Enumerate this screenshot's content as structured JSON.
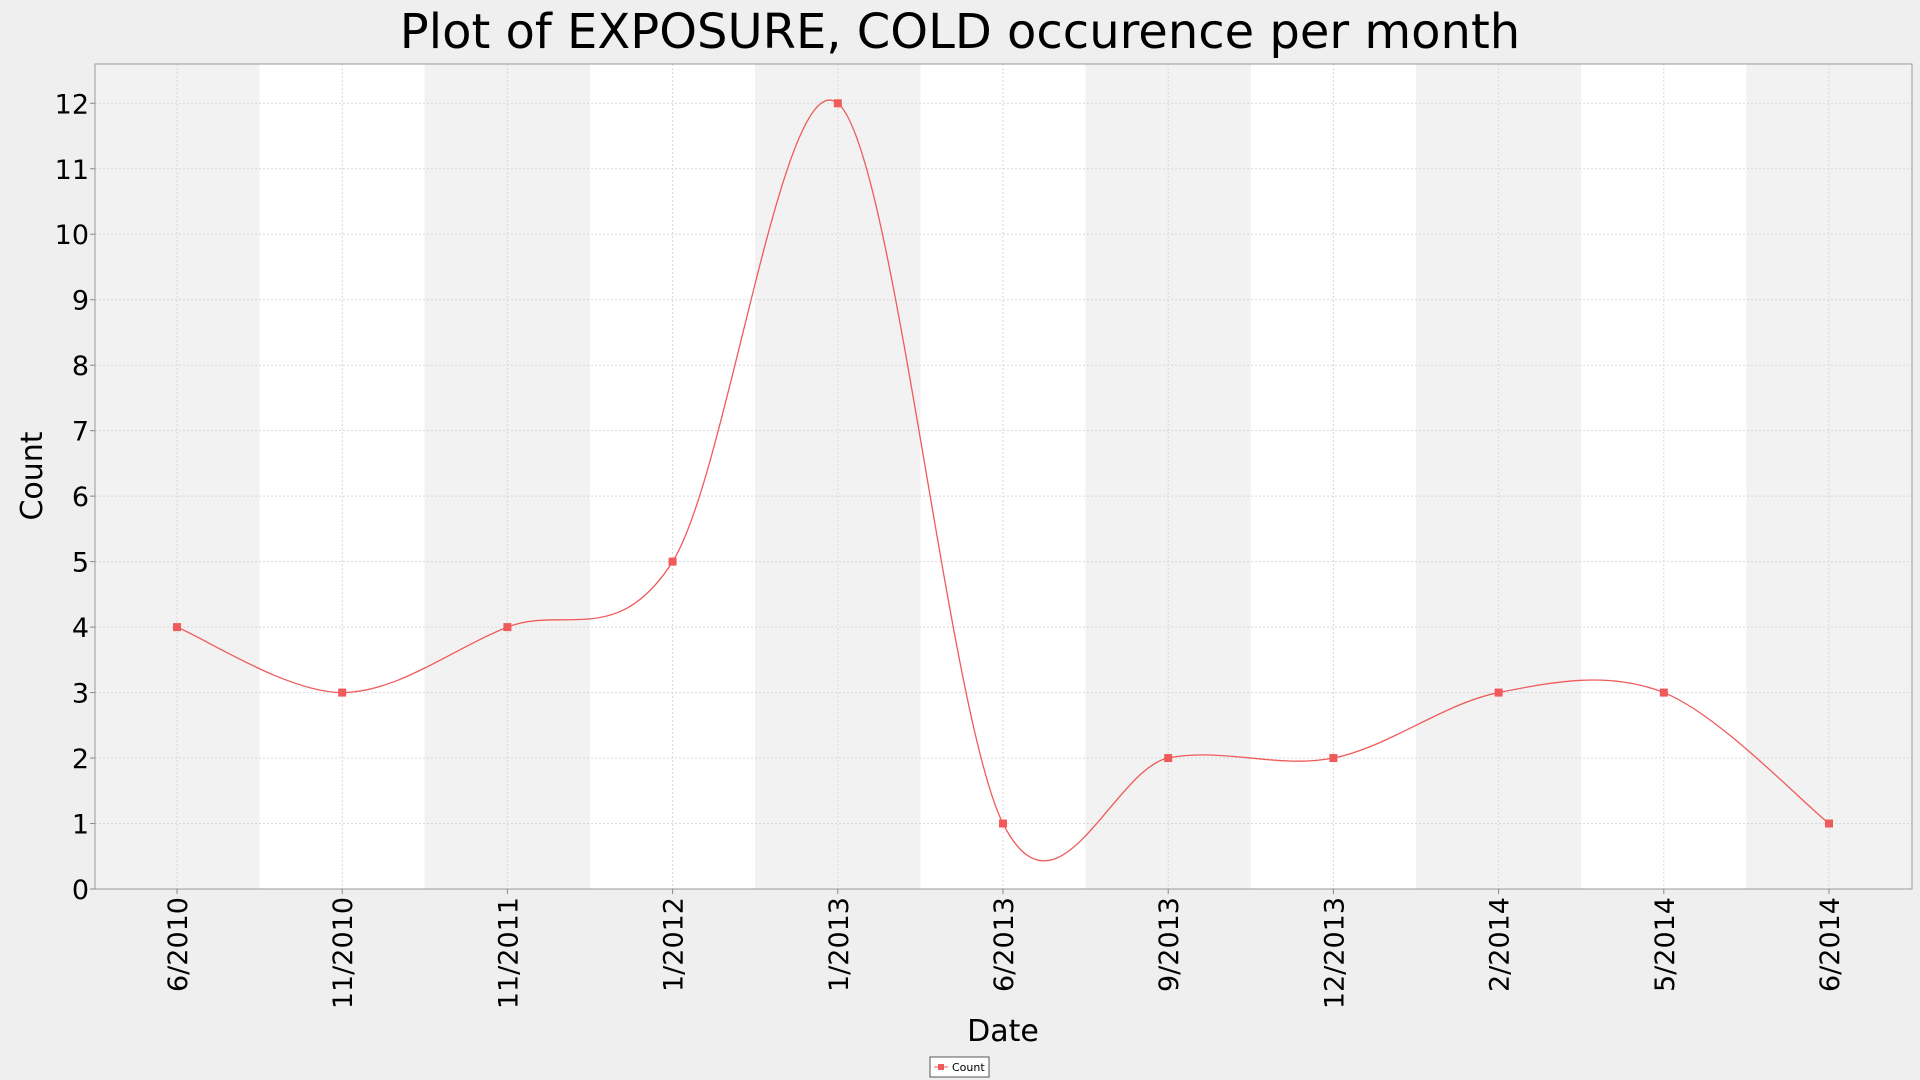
{
  "chart_data": {
    "type": "line",
    "title": "Plot of EXPOSURE, COLD occurence per month",
    "xlabel": "Date",
    "ylabel": "Count",
    "ylim": [
      0,
      12.6
    ],
    "yticks": [
      "0",
      "1",
      "2",
      "3",
      "4",
      "5",
      "6",
      "7",
      "8",
      "9",
      "10",
      "11",
      "12"
    ],
    "categories": [
      "6/2010",
      "11/2010",
      "11/2011",
      "1/2012",
      "1/2013",
      "6/2013",
      "9/2013",
      "12/2013",
      "2/2014",
      "5/2014",
      "6/2014"
    ],
    "series": [
      {
        "name": "Count",
        "values": [
          4,
          3,
          4,
          5,
          12,
          1,
          2,
          2,
          3,
          3,
          1
        ],
        "color": "#f05a5a"
      }
    ],
    "grid": true,
    "alternating_band_colors": [
      "#f2f2f2",
      "#ffffff"
    ],
    "legend": "bottom-center"
  }
}
